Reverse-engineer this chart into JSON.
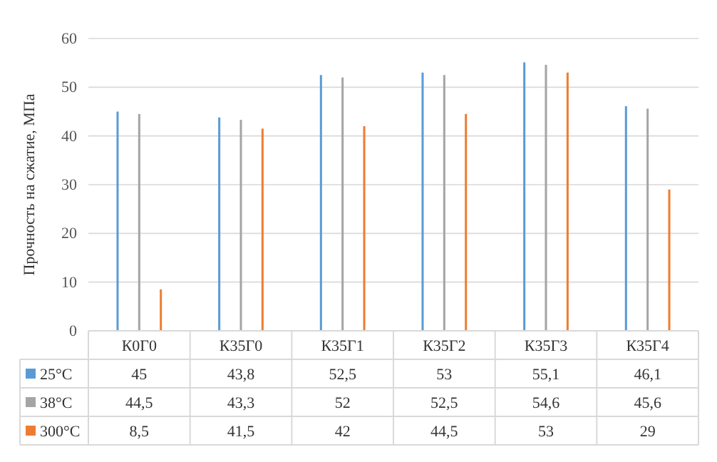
{
  "chart_data": {
    "type": "bar",
    "ylabel": "Прочность на сжатие, МПа",
    "categories": [
      "К0Г0",
      "К35Г0",
      "К35Г1",
      "К35Г2",
      "К35Г3",
      "К35Г4"
    ],
    "series": [
      {
        "name": "25°C",
        "color": "#5b9bd5",
        "values": [
          45,
          43.8,
          52.5,
          53,
          55.1,
          46.1
        ],
        "value_labels": [
          "45",
          "43,8",
          "52,5",
          "53",
          "55,1",
          "46,1"
        ]
      },
      {
        "name": "38°C",
        "color": "#a5a5a5",
        "values": [
          44.5,
          43.3,
          52,
          52.5,
          54.6,
          45.6
        ],
        "value_labels": [
          "44,5",
          "43,3",
          "52",
          "52,5",
          "54,6",
          "45,6"
        ]
      },
      {
        "name": "300°C",
        "color": "#ed7d31",
        "values": [
          8.5,
          41.5,
          42,
          44.5,
          53,
          29
        ],
        "value_labels": [
          "8,5",
          "41,5",
          "42",
          "44,5",
          "53",
          "29"
        ]
      }
    ],
    "ylim": [
      0,
      60
    ],
    "yticks": [
      0,
      10,
      20,
      30,
      40,
      50,
      60
    ],
    "grid": "y",
    "legend": "bottom"
  }
}
